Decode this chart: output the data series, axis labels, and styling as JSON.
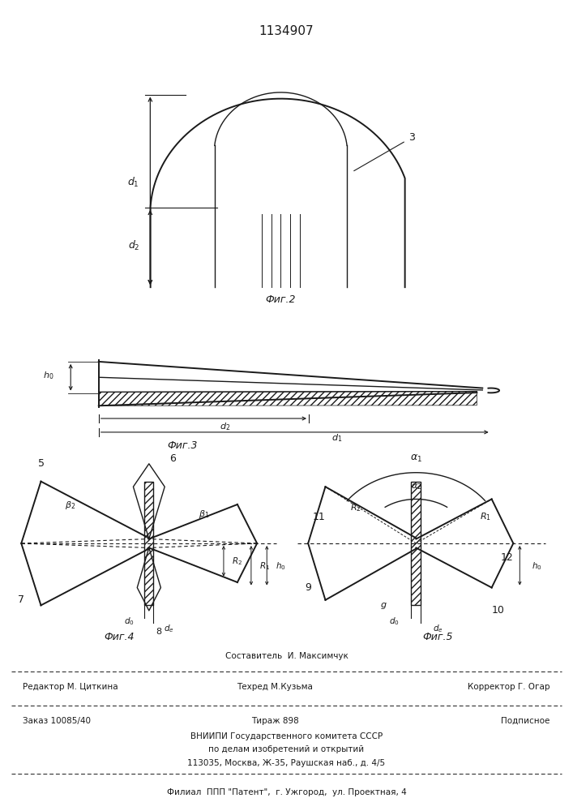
{
  "title": "1134907",
  "bg_color": "#ffffff",
  "line_color": "#1a1a1a",
  "fig2_caption": "Фиг.2",
  "fig3_caption": "Фиг.3",
  "fig4_caption": "Фиг.4",
  "fig5_caption": "Фиг.5"
}
